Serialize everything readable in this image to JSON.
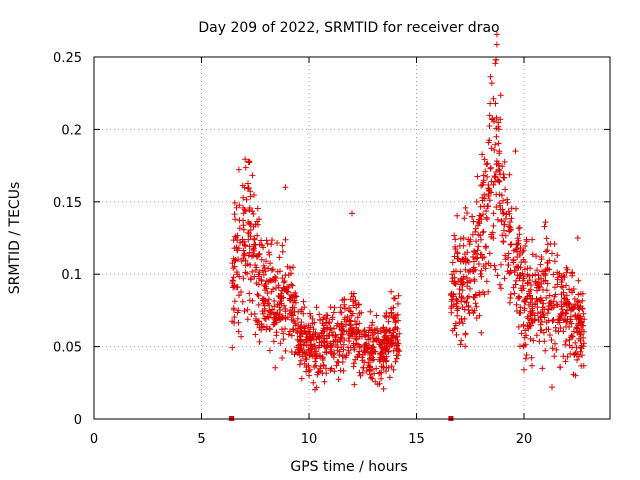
{
  "chart_data": {
    "type": "scatter",
    "title": "Day 209 of 2022, SRMTID for receiver drao",
    "xlabel": "GPS time / hours",
    "ylabel": "SRMTID / TECUs",
    "xlim": [
      0,
      24
    ],
    "ylim": [
      0,
      0.25
    ],
    "x_ticks": [
      0,
      5,
      10,
      15,
      20
    ],
    "x_tick_labels": [
      "0",
      "5",
      "10",
      "15",
      "20"
    ],
    "y_ticks": [
      0,
      0.05,
      0.1,
      0.15,
      0.2,
      0.25
    ],
    "y_tick_labels": [
      "0",
      "0.05",
      "0.1",
      "0.15",
      "0.2",
      "0.25"
    ],
    "grid": true,
    "marker": "+",
    "color": "#e00000",
    "zero_markers_x": [
      6.4,
      16.6
    ],
    "segments": [
      {
        "x_start": 6.4,
        "x_end": 14.2
      },
      {
        "x_start": 16.6,
        "x_end": 22.8
      }
    ],
    "envelope": [
      {
        "x": 6.4,
        "y": 0.085
      },
      {
        "x": 6.7,
        "y": 0.115
      },
      {
        "x": 7.0,
        "y": 0.13
      },
      {
        "x": 7.3,
        "y": 0.13
      },
      {
        "x": 7.6,
        "y": 0.1
      },
      {
        "x": 8.0,
        "y": 0.085
      },
      {
        "x": 8.5,
        "y": 0.08
      },
      {
        "x": 9.0,
        "y": 0.08
      },
      {
        "x": 9.5,
        "y": 0.06
      },
      {
        "x": 10.0,
        "y": 0.052
      },
      {
        "x": 10.5,
        "y": 0.05
      },
      {
        "x": 11.0,
        "y": 0.055
      },
      {
        "x": 11.5,
        "y": 0.06
      },
      {
        "x": 12.0,
        "y": 0.065
      },
      {
        "x": 12.5,
        "y": 0.05
      },
      {
        "x": 13.0,
        "y": 0.048
      },
      {
        "x": 13.5,
        "y": 0.05
      },
      {
        "x": 14.0,
        "y": 0.06
      },
      {
        "x": 14.2,
        "y": 0.055
      },
      {
        "x": 16.6,
        "y": 0.085
      },
      {
        "x": 17.0,
        "y": 0.09
      },
      {
        "x": 17.5,
        "y": 0.1
      },
      {
        "x": 18.0,
        "y": 0.12
      },
      {
        "x": 18.4,
        "y": 0.16
      },
      {
        "x": 18.7,
        "y": 0.19
      },
      {
        "x": 19.0,
        "y": 0.14
      },
      {
        "x": 19.5,
        "y": 0.11
      },
      {
        "x": 20.0,
        "y": 0.085
      },
      {
        "x": 20.5,
        "y": 0.08
      },
      {
        "x": 21.0,
        "y": 0.085
      },
      {
        "x": 21.5,
        "y": 0.08
      },
      {
        "x": 22.0,
        "y": 0.075
      },
      {
        "x": 22.5,
        "y": 0.065
      },
      {
        "x": 22.8,
        "y": 0.06
      }
    ],
    "peaks": [
      {
        "x": 7.2,
        "y": 0.178
      },
      {
        "x": 8.9,
        "y": 0.16
      },
      {
        "x": 12.0,
        "y": 0.142
      },
      {
        "x": 18.7,
        "y": 0.248
      },
      {
        "x": 18.5,
        "y": 0.232
      },
      {
        "x": 19.6,
        "y": 0.185
      },
      {
        "x": 21.0,
        "y": 0.136
      },
      {
        "x": 22.5,
        "y": 0.125
      }
    ],
    "lows": [
      {
        "x": 10.2,
        "y": 0.025
      },
      {
        "x": 13.2,
        "y": 0.024
      },
      {
        "x": 21.3,
        "y": 0.022
      },
      {
        "x": 22.4,
        "y": 0.03
      },
      {
        "x": 20.0,
        "y": 0.034
      }
    ]
  }
}
